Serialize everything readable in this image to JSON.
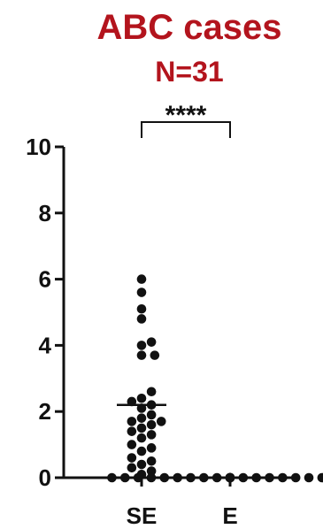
{
  "chart_data": {
    "type": "scatter",
    "title": "ABC cases",
    "subtitle": "N=31",
    "title_color": "#b3141d",
    "ink_color": "#111111",
    "ylim": [
      0,
      10
    ],
    "yticks": [
      0,
      2,
      4,
      6,
      8,
      10
    ],
    "ytick_labels": [
      "0",
      "2",
      "4",
      "6",
      "8",
      "10"
    ],
    "categories": [
      "SE",
      "E"
    ],
    "significance": "****",
    "series": [
      {
        "category": "SE",
        "mean": 2.2,
        "values": [
          6.0,
          5.6,
          5.1,
          4.8,
          4.1,
          4.0,
          3.7,
          3.7,
          2.6,
          2.4,
          2.3,
          2.2,
          2.1,
          1.9,
          1.8,
          1.7,
          1.7,
          1.6,
          1.5,
          1.4,
          1.3,
          1.2,
          1.0,
          0.9,
          0.8,
          0.6,
          0.5,
          0.4,
          0.3,
          0.2,
          0.1
        ]
      },
      {
        "category": "E",
        "mean": 0.0,
        "values": [
          0,
          0,
          0,
          0,
          0,
          0,
          0,
          0,
          0,
          0,
          0,
          0,
          0,
          0,
          0,
          0,
          0,
          0,
          0,
          0,
          0,
          0,
          0,
          0,
          0,
          0,
          0,
          0,
          0,
          0,
          0
        ]
      }
    ]
  }
}
